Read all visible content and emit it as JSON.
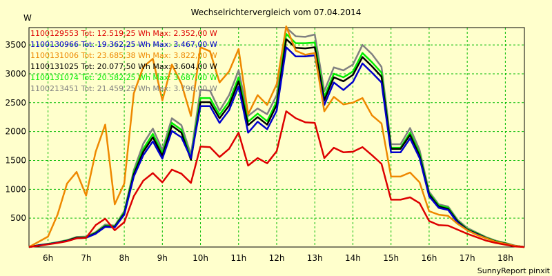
{
  "chart_data": {
    "type": "line",
    "title": "Wechselrichtervergleich vom 07.04.2014",
    "ylabel": "W",
    "xlabel": "",
    "footer": "SunnyReport pinxit",
    "ylim": [
      0,
      3800
    ],
    "xlim": [
      5.5,
      18.5
    ],
    "yticks": [
      500,
      1000,
      1500,
      2000,
      2500,
      3000,
      3500
    ],
    "xticks": [
      {
        "v": 6,
        "label": "6h"
      },
      {
        "v": 7,
        "label": "7h"
      },
      {
        "v": 8,
        "label": "8h"
      },
      {
        "v": 9,
        "label": "9h"
      },
      {
        "v": 10,
        "label": "10h"
      },
      {
        "v": 11,
        "label": "11h"
      },
      {
        "v": 12,
        "label": "12h"
      },
      {
        "v": 13,
        "label": "13h"
      },
      {
        "v": 14,
        "label": "14h"
      },
      {
        "v": 15,
        "label": "15h"
      },
      {
        "v": 16,
        "label": "16h"
      },
      {
        "v": 17,
        "label": "17h"
      },
      {
        "v": 18,
        "label": "18h"
      }
    ],
    "grid": true,
    "x": [
      5.5,
      5.75,
      6.0,
      6.25,
      6.5,
      6.75,
      7.0,
      7.25,
      7.5,
      7.75,
      8.0,
      8.25,
      8.5,
      8.75,
      9.0,
      9.25,
      9.5,
      9.75,
      10.0,
      10.25,
      10.5,
      10.75,
      11.0,
      11.25,
      11.5,
      11.75,
      12.0,
      12.25,
      12.5,
      12.75,
      13.0,
      13.25,
      13.5,
      13.75,
      14.0,
      14.25,
      14.5,
      14.75,
      15.0,
      15.25,
      15.5,
      15.75,
      16.0,
      16.25,
      16.5,
      16.75,
      17.0,
      17.25,
      17.5,
      17.75,
      18.0,
      18.25,
      18.5
    ],
    "series": [
      {
        "name": "1100213451",
        "legend": "1100213451 Tot: 21.459,25 Wh Max: 3.796,00 W",
        "color": "#808080",
        "values": [
          0,
          30,
          55,
          85,
          120,
          175,
          180,
          260,
          390,
          370,
          620,
          1330,
          1790,
          2050,
          1680,
          2230,
          2110,
          1600,
          2720,
          2710,
          2360,
          2630,
          3060,
          2270,
          2400,
          2300,
          2630,
          3800,
          3650,
          3640,
          3680,
          2700,
          3110,
          3060,
          3160,
          3500,
          3340,
          3120,
          1780,
          1780,
          2060,
          1680,
          960,
          740,
          700,
          470,
          330,
          250,
          170,
          110,
          70,
          25,
          0
        ]
      },
      {
        "name": "1100131074",
        "legend": "1100131074 Tot: 20.582,25 Wh Max: 3.687,00 W",
        "color": "#00ee00",
        "values": [
          0,
          30,
          55,
          80,
          115,
          165,
          170,
          250,
          370,
          360,
          600,
          1290,
          1700,
          1960,
          1620,
          2150,
          2030,
          1540,
          2580,
          2580,
          2290,
          2520,
          2940,
          2170,
          2310,
          2180,
          2520,
          3690,
          3530,
          3530,
          3540,
          2600,
          3000,
          2940,
          3040,
          3360,
          3200,
          3020,
          1720,
          1720,
          1980,
          1620,
          930,
          720,
          680,
          450,
          310,
          240,
          160,
          100,
          65,
          20,
          0
        ]
      },
      {
        "name": "1100131025",
        "legend": "1100131025 Tot: 20.077,50 Wh Max: 3.604,00 W",
        "color": "#000000",
        "values": [
          0,
          30,
          50,
          75,
          110,
          160,
          165,
          240,
          360,
          350,
          580,
          1260,
          1650,
          1900,
          1580,
          2100,
          1980,
          1510,
          2510,
          2510,
          2230,
          2450,
          2870,
          2110,
          2250,
          2120,
          2460,
          3600,
          3450,
          3440,
          3460,
          2540,
          2940,
          2870,
          2980,
          3290,
          3130,
          2950,
          1700,
          1700,
          1940,
          1580,
          910,
          700,
          660,
          440,
          300,
          230,
          155,
          95,
          60,
          20,
          0
        ]
      },
      {
        "name": "1100130966",
        "legend": "1100130966 Tot: 19.362,25 Wh Max: 3.467,00 W",
        "color": "#0000cc",
        "values": [
          0,
          25,
          50,
          75,
          105,
          150,
          160,
          230,
          350,
          340,
          560,
          1220,
          1590,
          1830,
          1530,
          2010,
          1900,
          1540,
          2440,
          2440,
          2150,
          2370,
          2780,
          1980,
          2170,
          2040,
          2360,
          3460,
          3300,
          3300,
          3320,
          2460,
          2850,
          2720,
          2860,
          3180,
          3020,
          2850,
          1640,
          1640,
          1880,
          1540,
          880,
          680,
          640,
          420,
          290,
          220,
          150,
          90,
          55,
          20,
          0
        ]
      },
      {
        "name": "1100131006",
        "legend": "1100131006 Tot: 23.685,38 Wh Max: 3.822,00 W",
        "color": "#ee8800",
        "values": [
          0,
          90,
          180,
          560,
          1100,
          1300,
          890,
          1650,
          2120,
          740,
          1100,
          2660,
          3120,
          3260,
          2540,
          3160,
          2830,
          2270,
          3460,
          3390,
          2850,
          3040,
          3430,
          2300,
          2630,
          2460,
          2820,
          3822,
          3400,
          3330,
          3360,
          2350,
          2600,
          2470,
          2500,
          2580,
          2280,
          2140,
          1220,
          1220,
          1290,
          1120,
          620,
          560,
          540,
          400,
          290,
          210,
          150,
          90,
          55,
          20,
          0
        ]
      },
      {
        "name": "1100129553",
        "legend": "1100129553 Tot: 12.519,25 Wh Max: 2.352,00 W",
        "color": "#dd0000",
        "values": [
          0,
          20,
          45,
          70,
          100,
          150,
          160,
          380,
          490,
          290,
          430,
          880,
          1150,
          1280,
          1120,
          1340,
          1270,
          1110,
          1740,
          1730,
          1560,
          1700,
          1980,
          1410,
          1540,
          1450,
          1660,
          2350,
          2230,
          2160,
          2150,
          1540,
          1720,
          1640,
          1650,
          1730,
          1590,
          1440,
          820,
          820,
          860,
          760,
          450,
          380,
          370,
          300,
          230,
          170,
          110,
          70,
          40,
          10,
          0
        ]
      }
    ]
  }
}
